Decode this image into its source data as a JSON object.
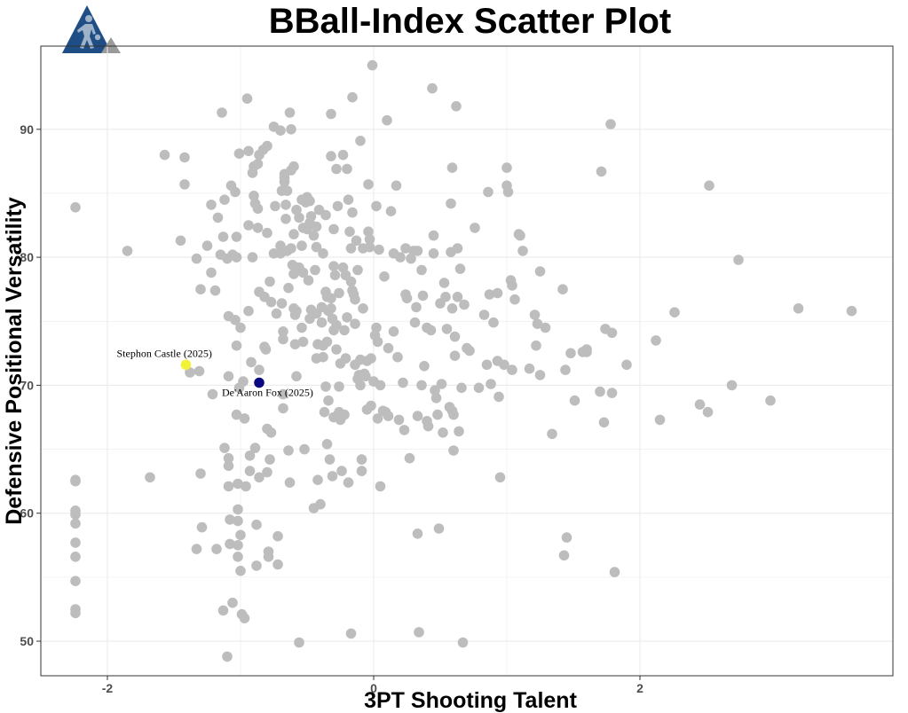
{
  "page": {
    "title": "BBall-Index Scatter Plot"
  },
  "logo": {
    "icon": "basketball-player-logo-icon",
    "color": "#1f4e86",
    "accent": "#9a9a9a"
  },
  "colors": {
    "points": "#bdbdbd",
    "highlight_castle": "#f2f239",
    "highlight_fox": "#0a0a80",
    "grid": "#ebebeb"
  },
  "chart_data": {
    "type": "scatter",
    "title": "BBall-Index Scatter Plot",
    "xlabel": "3PT Shooting Talent",
    "ylabel": "Defensive Positional Versatility",
    "xlim": [
      -2.5,
      3.9
    ],
    "ylim": [
      47.3,
      96.5
    ],
    "x_ticks": [
      -2,
      0,
      2
    ],
    "y_ticks": [
      50,
      60,
      70,
      80,
      90
    ],
    "grid": true,
    "highlights": [
      {
        "label": "Stephon Castle (2025)",
        "x": -1.41,
        "y": 71.6,
        "color": "#f2f239"
      },
      {
        "label": "De'Aaron Fox (2025)",
        "x": -0.86,
        "y": 70.2,
        "color": "#0a0a80"
      }
    ],
    "points": [
      [
        -2.24,
        83.9
      ],
      [
        -2.24,
        62.6
      ],
      [
        -2.24,
        62.5
      ],
      [
        -2.24,
        60.2
      ],
      [
        -2.24,
        59.9
      ],
      [
        -2.24,
        59.2
      ],
      [
        -2.24,
        57.7
      ],
      [
        -2.24,
        56.6
      ],
      [
        -2.24,
        54.7
      ],
      [
        -2.24,
        52.5
      ],
      [
        -2.24,
        52.2
      ],
      [
        -1.85,
        80.5
      ],
      [
        -1.68,
        62.8
      ],
      [
        -1.57,
        88.0
      ],
      [
        -1.45,
        81.3
      ],
      [
        -1.42,
        87.8
      ],
      [
        -1.42,
        85.7
      ],
      [
        -1.38,
        71.0
      ],
      [
        -1.33,
        79.9
      ],
      [
        -1.31,
        71.1
      ],
      [
        -1.3,
        77.5
      ],
      [
        -1.3,
        63.1
      ],
      [
        -1.29,
        58.9
      ],
      [
        -1.33,
        57.2
      ],
      [
        -1.25,
        80.9
      ],
      [
        -1.22,
        84.1
      ],
      [
        -1.22,
        78.8
      ],
      [
        -1.21,
        69.3
      ],
      [
        -1.19,
        77.4
      ],
      [
        -1.18,
        57.2
      ],
      [
        -1.17,
        83.1
      ],
      [
        -1.15,
        80.2
      ],
      [
        -1.14,
        91.3
      ],
      [
        -1.13,
        81.6
      ],
      [
        -1.12,
        84.5
      ],
      [
        -1.12,
        65.1
      ],
      [
        -1.1,
        79.9
      ],
      [
        -1.09,
        75.4
      ],
      [
        -1.09,
        70.7
      ],
      [
        -1.09,
        64.3
      ],
      [
        -1.09,
        63.7
      ],
      [
        -1.09,
        62.1
      ],
      [
        -1.08,
        59.5
      ],
      [
        -1.08,
        57.6
      ],
      [
        -1.07,
        85.6
      ],
      [
        -1.06,
        80.2
      ],
      [
        -1.06,
        53.0
      ],
      [
        -1.1,
        48.8
      ],
      [
        -1.13,
        52.4
      ],
      [
        -1.04,
        85.1
      ],
      [
        -1.04,
        75.1
      ],
      [
        -1.03,
        81.6
      ],
      [
        -1.03,
        80.0
      ],
      [
        -1.03,
        73.1
      ],
      [
        -1.03,
        67.7
      ],
      [
        -1.02,
        62.3
      ],
      [
        -1.02,
        60.3
      ],
      [
        -1.02,
        59.4
      ],
      [
        -1.02,
        57.5
      ],
      [
        -1.02,
        56.6
      ],
      [
        -1.01,
        88.1
      ],
      [
        -1.01,
        69.8
      ],
      [
        -1.0,
        74.5
      ],
      [
        -1.0,
        58.3
      ],
      [
        -1.0,
        55.5
      ],
      [
        -0.99,
        52.1
      ],
      [
        -0.98,
        70.3
      ],
      [
        -0.97,
        67.4
      ],
      [
        -0.97,
        51.8
      ],
      [
        -0.96,
        62.1
      ],
      [
        -0.95,
        92.4
      ],
      [
        -0.94,
        88.3
      ],
      [
        -0.94,
        82.5
      ],
      [
        -0.94,
        75.8
      ],
      [
        -0.93,
        64.5
      ],
      [
        -0.93,
        63.3
      ],
      [
        -0.92,
        71.8
      ],
      [
        -0.91,
        86.6
      ],
      [
        -0.91,
        80.0
      ],
      [
        -0.9,
        87.1
      ],
      [
        -0.9,
        84.8
      ],
      [
        -0.89,
        84.2
      ],
      [
        -0.89,
        65.1
      ],
      [
        -0.88,
        59.1
      ],
      [
        -0.88,
        55.9
      ],
      [
        -0.87,
        87.3
      ],
      [
        -0.87,
        83.8
      ],
      [
        -0.87,
        82.3
      ],
      [
        -0.86,
        88.0
      ],
      [
        -0.86,
        77.3
      ],
      [
        -0.86,
        71.2
      ],
      [
        -0.86,
        62.8
      ],
      [
        -0.83,
        88.4
      ],
      [
        -0.82,
        76.9
      ],
      [
        -0.82,
        73.0
      ],
      [
        -0.81,
        72.8
      ],
      [
        -0.8,
        88.7
      ],
      [
        -0.8,
        81.9
      ],
      [
        -0.8,
        66.6
      ],
      [
        -0.8,
        63.2
      ],
      [
        -0.79,
        57.0
      ],
      [
        -0.79,
        56.6
      ],
      [
        -0.78,
        78.1
      ],
      [
        -0.78,
        64.2
      ],
      [
        -0.77,
        76.5
      ],
      [
        -0.77,
        66.3
      ],
      [
        -0.75,
        90.2
      ],
      [
        -0.75,
        80.3
      ],
      [
        -0.74,
        84.0
      ],
      [
        -0.73,
        75.6
      ],
      [
        -0.72,
        58.2
      ],
      [
        -0.72,
        56.0
      ],
      [
        -0.7,
        89.9
      ],
      [
        -0.7,
        80.9
      ],
      [
        -0.7,
        80.3
      ],
      [
        -0.69,
        85.2
      ],
      [
        -0.69,
        76.4
      ],
      [
        -0.68,
        74.2
      ],
      [
        -0.68,
        73.6
      ],
      [
        -0.68,
        69.3
      ],
      [
        -0.68,
        68.2
      ],
      [
        -0.67,
        86.5
      ],
      [
        -0.67,
        86.2
      ],
      [
        -0.67,
        85.9
      ],
      [
        -0.66,
        84.1
      ],
      [
        -0.66,
        83.0
      ],
      [
        -0.65,
        85.2
      ],
      [
        -0.65,
        80.5
      ],
      [
        -0.64,
        77.6
      ],
      [
        -0.64,
        64.9
      ],
      [
        -0.63,
        91.3
      ],
      [
        -0.63,
        62.4
      ],
      [
        -0.62,
        90.0
      ],
      [
        -0.62,
        86.8
      ],
      [
        -0.62,
        80.7
      ],
      [
        -0.61,
        79.4
      ],
      [
        -0.6,
        87.1
      ],
      [
        -0.6,
        81.8
      ],
      [
        -0.6,
        78.7
      ],
      [
        -0.6,
        76.0
      ],
      [
        -0.59,
        75.5
      ],
      [
        -0.59,
        73.2
      ],
      [
        -0.58,
        83.7
      ],
      [
        -0.58,
        75.8
      ],
      [
        -0.58,
        70.7
      ],
      [
        -0.56,
        83.1
      ],
      [
        -0.56,
        79.2
      ],
      [
        -0.56,
        49.9
      ],
      [
        -0.54,
        84.5
      ],
      [
        -0.54,
        80.9
      ],
      [
        -0.54,
        74.5
      ],
      [
        -0.53,
        82.3
      ],
      [
        -0.53,
        78.8
      ],
      [
        -0.53,
        73.4
      ],
      [
        -0.52,
        65.0
      ],
      [
        -0.51,
        84.3
      ],
      [
        -0.5,
        84.7
      ],
      [
        -0.5,
        82.2
      ],
      [
        -0.49,
        78.2
      ],
      [
        -0.48,
        84.4
      ],
      [
        -0.48,
        82.7
      ],
      [
        -0.48,
        75.2
      ],
      [
        -0.47,
        83.2
      ],
      [
        -0.47,
        75.9
      ],
      [
        -0.45,
        81.7
      ],
      [
        -0.45,
        60.4
      ],
      [
        -0.44,
        79.0
      ],
      [
        -0.43,
        82.4
      ],
      [
        -0.43,
        80.8
      ],
      [
        -0.43,
        75.6
      ],
      [
        -0.43,
        72.1
      ],
      [
        -0.42,
        73.2
      ],
      [
        -0.42,
        62.6
      ],
      [
        -0.41,
        83.7
      ],
      [
        -0.4,
        60.7
      ],
      [
        -0.39,
        76.1
      ],
      [
        -0.39,
        74.9
      ],
      [
        -0.38,
        80.3
      ],
      [
        -0.38,
        73.1
      ],
      [
        -0.38,
        72.2
      ],
      [
        -0.37,
        67.9
      ],
      [
        -0.36,
        83.3
      ],
      [
        -0.36,
        77.3
      ],
      [
        -0.36,
        69.9
      ],
      [
        -0.35,
        76.9
      ],
      [
        -0.35,
        73.4
      ],
      [
        -0.35,
        65.4
      ],
      [
        -0.34,
        75.8
      ],
      [
        -0.34,
        68.8
      ],
      [
        -0.33,
        64.2
      ],
      [
        -0.32,
        91.2
      ],
      [
        -0.32,
        87.9
      ],
      [
        -0.32,
        76.8
      ],
      [
        -0.32,
        76.0
      ],
      [
        -0.31,
        75.2
      ],
      [
        -0.31,
        62.9
      ],
      [
        -0.3,
        82.2
      ],
      [
        -0.3,
        79.3
      ],
      [
        -0.3,
        74.3
      ],
      [
        -0.3,
        67.5
      ],
      [
        -0.29,
        78.6
      ],
      [
        -0.28,
        86.9
      ],
      [
        -0.28,
        74.7
      ],
      [
        -0.28,
        72.8
      ],
      [
        -0.27,
        84.0
      ],
      [
        -0.26,
        77.2
      ],
      [
        -0.26,
        69.9
      ],
      [
        -0.26,
        67.9
      ],
      [
        -0.25,
        71.7
      ],
      [
        -0.25,
        67.3
      ],
      [
        -0.24,
        63.3
      ],
      [
        -0.23,
        88.0
      ],
      [
        -0.23,
        79.2
      ],
      [
        -0.22,
        74.3
      ],
      [
        -0.22,
        67.7
      ],
      [
        -0.21,
        78.6
      ],
      [
        -0.21,
        72.1
      ],
      [
        -0.2,
        86.9
      ],
      [
        -0.2,
        75.3
      ],
      [
        -0.19,
        84.5
      ],
      [
        -0.19,
        62.4
      ],
      [
        -0.18,
        82.0
      ],
      [
        -0.17,
        80.7
      ],
      [
        -0.17,
        78.1
      ],
      [
        -0.17,
        50.6
      ],
      [
        -0.16,
        92.5
      ],
      [
        -0.16,
        83.5
      ],
      [
        -0.16,
        77.4
      ],
      [
        -0.15,
        77.1
      ],
      [
        -0.14,
        76.7
      ],
      [
        -0.14,
        74.8
      ],
      [
        -0.14,
        71.6
      ],
      [
        -0.13,
        81.3
      ],
      [
        -0.12,
        79.0
      ],
      [
        -0.12,
        70.5
      ],
      [
        -0.11,
        70.8
      ],
      [
        -0.1,
        89.1
      ],
      [
        -0.1,
        72.0
      ],
      [
        -0.1,
        70.0
      ],
      [
        -0.09,
        64.2
      ],
      [
        -0.09,
        63.3
      ],
      [
        -0.08,
        80.7
      ],
      [
        -0.08,
        76.0
      ],
      [
        -0.07,
        70.9
      ],
      [
        -0.06,
        70.7
      ],
      [
        -0.05,
        71.9
      ],
      [
        -0.05,
        68.1
      ],
      [
        -0.04,
        85.7
      ],
      [
        -0.04,
        82.0
      ],
      [
        -0.03,
        81.4
      ],
      [
        -0.03,
        80.8
      ],
      [
        -0.02,
        72.1
      ],
      [
        -0.02,
        68.4
      ],
      [
        -0.01,
        95.0
      ],
      [
        0.0,
        70.3
      ],
      [
        0.01,
        73.9
      ],
      [
        0.02,
        84.0
      ],
      [
        0.02,
        74.5
      ],
      [
        0.03,
        73.4
      ],
      [
        0.03,
        67.4
      ],
      [
        0.04,
        80.6
      ],
      [
        0.05,
        62.1
      ],
      [
        0.05,
        70.0
      ],
      [
        0.07,
        68.0
      ],
      [
        0.08,
        78.5
      ],
      [
        0.09,
        67.9
      ],
      [
        0.1,
        90.7
      ],
      [
        0.11,
        72.9
      ],
      [
        0.11,
        67.6
      ],
      [
        0.13,
        83.6
      ],
      [
        0.15,
        80.3
      ],
      [
        0.15,
        74.2
      ],
      [
        0.17,
        85.6
      ],
      [
        0.18,
        72.2
      ],
      [
        0.19,
        67.3
      ],
      [
        0.2,
        80.0
      ],
      [
        0.22,
        70.2
      ],
      [
        0.23,
        66.5
      ],
      [
        0.24,
        80.7
      ],
      [
        0.24,
        77.1
      ],
      [
        0.25,
        76.8
      ],
      [
        0.27,
        64.3
      ],
      [
        0.28,
        79.9
      ],
      [
        0.3,
        80.5
      ],
      [
        0.31,
        74.9
      ],
      [
        0.32,
        76.1
      ],
      [
        0.33,
        80.5
      ],
      [
        0.33,
        67.6
      ],
      [
        0.33,
        58.4
      ],
      [
        0.34,
        50.7
      ],
      [
        0.36,
        79.0
      ],
      [
        0.36,
        70.0
      ],
      [
        0.37,
        77.0
      ],
      [
        0.38,
        71.5
      ],
      [
        0.4,
        74.5
      ],
      [
        0.4,
        67.2
      ],
      [
        0.41,
        66.8
      ],
      [
        0.43,
        74.3
      ],
      [
        0.44,
        93.2
      ],
      [
        0.45,
        81.7
      ],
      [
        0.45,
        80.3
      ],
      [
        0.46,
        69.6
      ],
      [
        0.47,
        69.0
      ],
      [
        0.48,
        67.7
      ],
      [
        0.49,
        58.8
      ],
      [
        0.5,
        76.4
      ],
      [
        0.51,
        70.1
      ],
      [
        0.52,
        66.3
      ],
      [
        0.53,
        78.0
      ],
      [
        0.54,
        76.9
      ],
      [
        0.55,
        74.4
      ],
      [
        0.57,
        68.3
      ],
      [
        0.58,
        84.2
      ],
      [
        0.58,
        80.4
      ],
      [
        0.59,
        87.0
      ],
      [
        0.59,
        76.0
      ],
      [
        0.59,
        68.0
      ],
      [
        0.6,
        67.7
      ],
      [
        0.6,
        64.9
      ],
      [
        0.61,
        73.8
      ],
      [
        0.61,
        72.3
      ],
      [
        0.62,
        91.8
      ],
      [
        0.63,
        80.7
      ],
      [
        0.63,
        76.9
      ],
      [
        0.64,
        66.4
      ],
      [
        0.65,
        79.1
      ],
      [
        0.66,
        69.8
      ],
      [
        0.67,
        49.9
      ],
      [
        0.68,
        76.3
      ],
      [
        0.7,
        72.9
      ],
      [
        0.72,
        72.7
      ],
      [
        0.76,
        82.3
      ],
      [
        0.79,
        69.8
      ],
      [
        0.83,
        75.5
      ],
      [
        0.85,
        71.6
      ],
      [
        0.86,
        85.1
      ],
      [
        0.87,
        77.1
      ],
      [
        0.88,
        70.1
      ],
      [
        0.9,
        74.9
      ],
      [
        0.93,
        77.2
      ],
      [
        0.93,
        71.9
      ],
      [
        0.94,
        69.1
      ],
      [
        0.95,
        62.8
      ],
      [
        0.98,
        71.6
      ],
      [
        1.0,
        87.0
      ],
      [
        1.0,
        85.6
      ],
      [
        1.01,
        85.1
      ],
      [
        1.03,
        78.2
      ],
      [
        1.04,
        77.8
      ],
      [
        1.04,
        71.2
      ],
      [
        1.06,
        76.7
      ],
      [
        1.09,
        81.8
      ],
      [
        1.1,
        81.7
      ],
      [
        1.12,
        80.5
      ],
      [
        1.17,
        71.3
      ],
      [
        1.21,
        75.5
      ],
      [
        1.22,
        73.1
      ],
      [
        1.23,
        74.8
      ],
      [
        1.25,
        78.9
      ],
      [
        1.25,
        70.8
      ],
      [
        1.29,
        74.5
      ],
      [
        1.34,
        66.2
      ],
      [
        1.42,
        77.5
      ],
      [
        1.43,
        56.7
      ],
      [
        1.44,
        71.2
      ],
      [
        1.45,
        58.1
      ],
      [
        1.48,
        72.5
      ],
      [
        1.51,
        68.8
      ],
      [
        1.57,
        72.6
      ],
      [
        1.6,
        72.8
      ],
      [
        1.7,
        69.5
      ],
      [
        1.71,
        86.7
      ],
      [
        1.73,
        67.1
      ],
      [
        1.74,
        74.4
      ],
      [
        1.78,
        90.4
      ],
      [
        1.79,
        74.1
      ],
      [
        1.79,
        69.4
      ],
      [
        1.81,
        55.4
      ],
      [
        1.9,
        71.6
      ],
      [
        2.12,
        73.5
      ],
      [
        2.15,
        67.3
      ],
      [
        2.26,
        75.7
      ],
      [
        2.45,
        68.5
      ],
      [
        2.51,
        67.9
      ],
      [
        2.52,
        85.6
      ],
      [
        2.69,
        70.0
      ],
      [
        2.74,
        79.8
      ],
      [
        2.98,
        68.8
      ],
      [
        3.19,
        76.0
      ],
      [
        3.59,
        75.8
      ],
      [
        1.6,
        72.6
      ]
    ]
  }
}
